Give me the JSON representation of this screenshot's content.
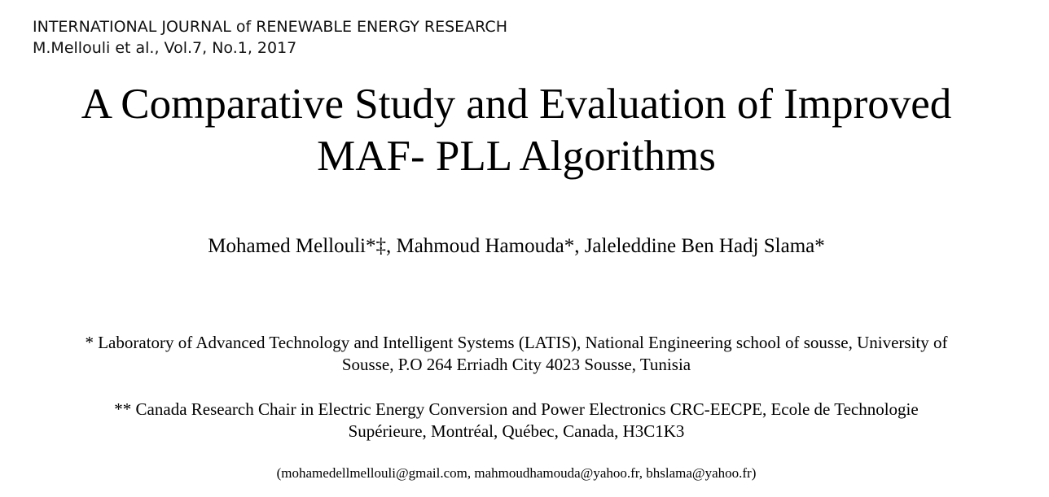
{
  "journal": {
    "name": "INTERNATIONAL JOURNAL of RENEWABLE ENERGY RESEARCH",
    "citation": "M.Mellouli et al., Vol.7, No.1, 2017"
  },
  "paper": {
    "title_line1": "A Comparative Study and Evaluation of Improved",
    "title_line2": "MAF- PLL Algorithms",
    "authors": "Mohamed Mellouli*‡, Mahmoud Hamouda*, Jaleleddine Ben Hadj Slama*",
    "affiliations": [
      {
        "line1": "* Laboratory of Advanced Technology and Intelligent Systems (LATIS), National Engineering school of sousse, University of",
        "line2": "Sousse, P.O 264 Erriadh City 4023 Sousse, Tunisia"
      },
      {
        "line1": "** Canada Research Chair in Electric Energy Conversion and Power Electronics CRC-EECPE, Ecole de Technologie",
        "line2": "Supérieure, Montréal, Québec, Canada, H3C1K3"
      }
    ],
    "emails": "(mohamedellmellouli@gmail.com, mahmoudhamouda@yahoo.fr, bhslama@yahoo.fr)"
  }
}
